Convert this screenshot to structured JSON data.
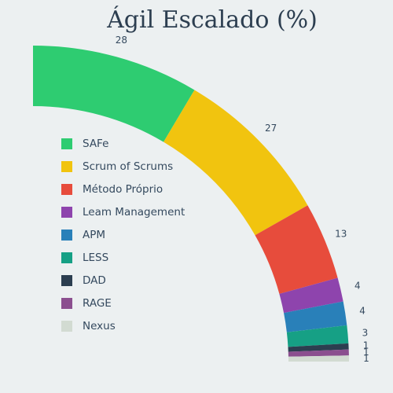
{
  "chart_data": {
    "type": "pie",
    "title": "Ágil Escalado (%)",
    "categories": [
      "SAFe",
      "Scrum of Scrums",
      "Método Próprio",
      "Leam Management",
      "APM",
      "LESS",
      "DAD",
      "RAGE",
      "Nexus"
    ],
    "values": [
      28,
      27,
      13,
      4,
      4,
      3,
      1,
      1,
      1
    ],
    "colors": [
      "#2ecc71",
      "#f1c40f",
      "#e74c3c",
      "#8e44ad",
      "#2980b9",
      "#16a085",
      "#2c3e50",
      "#8b4f8f",
      "#d2dbd2"
    ],
    "legend_position": "left"
  }
}
